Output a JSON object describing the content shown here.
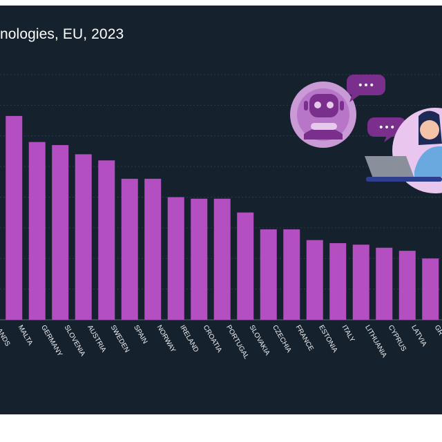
{
  "title": "nologies, EU, 2023",
  "colors": {
    "background": "#16212e",
    "bar": "#b44fc2",
    "tick_text": "#f2f2f2",
    "gridline": "#2d3b4c",
    "accent_purple": "#7b2f8c"
  },
  "illustration": {
    "icon_names": [
      "robot-chat-icon",
      "speech-bubble-icon",
      "person-with-laptop-icon"
    ],
    "bubble_text": "•••"
  },
  "chart_data": {
    "type": "bar",
    "title": "nologies, EU, 2023",
    "xlabel": "",
    "ylabel": "",
    "categories": [
      "NETHERLANDS",
      "MALTA",
      "GERMANY",
      "SLOVENIA",
      "AUSTRIA",
      "SWEDEN",
      "SPAIN",
      "NORWAY",
      "IRELAND",
      "CROATIA",
      "PORTUGAL",
      "SLOVAKIA",
      "CZECHIA",
      "FRANCE",
      "ESTONIA",
      "ITALY",
      "LITHUANIA",
      "CYPRUS",
      "LATVIA",
      "GREECE"
    ],
    "tick_labels": [
      "LANDS",
      "MALTA",
      "GERMANY",
      "SLOVENIA",
      "AUSTRIA",
      "SWEDEN",
      "SPAIN",
      "NORWAY",
      "IRELAND",
      "CROATIA",
      "PORTUGAL",
      "SLOVAKIA",
      "CZECHIA",
      "FRANCE",
      "ESTONIA",
      "ITALY",
      "LITHUANIA",
      "CYPRUS",
      "LATVIA",
      "GR"
    ],
    "values": [
      13.5,
      13.3,
      11.6,
      11.4,
      10.8,
      10.4,
      9.2,
      9.2,
      8.0,
      7.9,
      7.9,
      7.0,
      5.9,
      5.9,
      5.2,
      5.0,
      4.9,
      4.7,
      4.5,
      4.0
    ],
    "ylim": [
      0,
      16
    ],
    "grid": true,
    "legend": "none"
  }
}
